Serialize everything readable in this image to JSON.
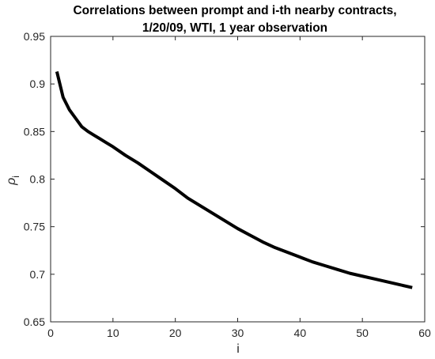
{
  "chart_data": {
    "type": "line",
    "title_lines": [
      "Correlations between prompt and i-th nearby contracts,",
      "1/20/09, WTI, 1 year observation"
    ],
    "xlabel": "i",
    "ylabel": "ρ",
    "ylabel_subscript": "i",
    "xlim": [
      0,
      60
    ],
    "ylim": [
      0.65,
      0.95
    ],
    "xticks": [
      0,
      10,
      20,
      30,
      40,
      50,
      60
    ],
    "yticks": [
      "0.65",
      "0.7",
      "0.75",
      "0.8",
      "0.85",
      "0.9",
      "0.95"
    ],
    "grid": false,
    "series": [
      {
        "color": "#000000",
        "x": [
          1,
          2,
          3,
          4,
          5,
          6,
          7,
          8,
          9,
          10,
          12,
          14,
          16,
          18,
          20,
          22,
          24,
          26,
          28,
          30,
          32,
          34,
          36,
          38,
          40,
          42,
          44,
          46,
          48,
          50,
          52,
          54,
          56,
          58
        ],
        "y": [
          0.913,
          0.886,
          0.873,
          0.864,
          0.855,
          0.85,
          0.846,
          0.842,
          0.838,
          0.834,
          0.825,
          0.817,
          0.808,
          0.799,
          0.79,
          0.78,
          0.772,
          0.764,
          0.756,
          0.748,
          0.741,
          0.734,
          0.728,
          0.723,
          0.718,
          0.713,
          0.709,
          0.705,
          0.701,
          0.698,
          0.695,
          0.692,
          0.689,
          0.686
        ]
      }
    ]
  }
}
